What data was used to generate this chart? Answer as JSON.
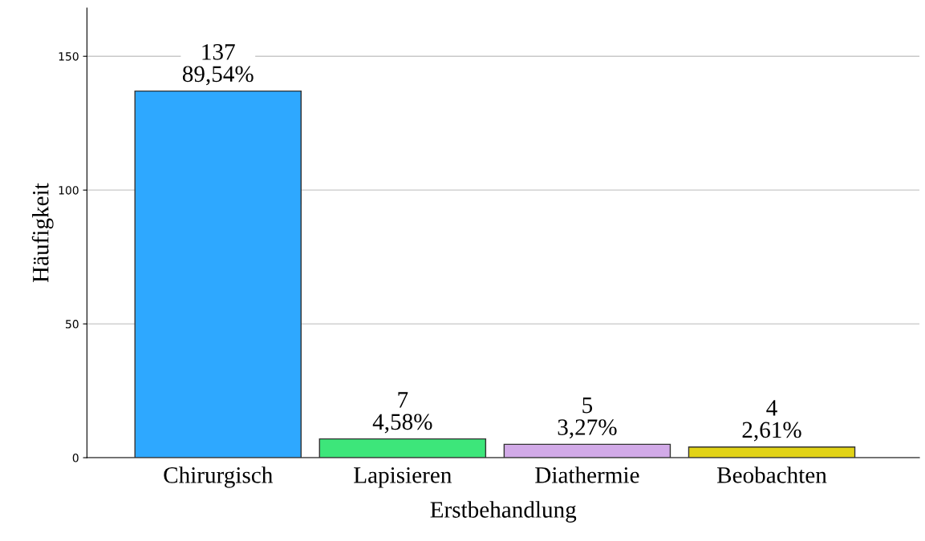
{
  "chart_data": {
    "type": "bar",
    "xlabel": "Erstbehandlung",
    "ylabel": "Häufigkeit",
    "categories": [
      "Chirurgisch",
      "Lapisieren",
      "Diathermie",
      "Beobachten"
    ],
    "values": [
      137,
      7,
      5,
      4
    ],
    "colors": [
      "#2ea8ff",
      "#3de67a",
      "#d2aae8",
      "#e2d316"
    ],
    "value_labels": [
      "137\n89,54%",
      "7\n4,58%",
      "5\n3,27%",
      "4\n2,61%"
    ],
    "ylim": [
      0,
      168
    ],
    "yticks": [
      0,
      50,
      100,
      150
    ],
    "grid": "y",
    "legend": false
  }
}
